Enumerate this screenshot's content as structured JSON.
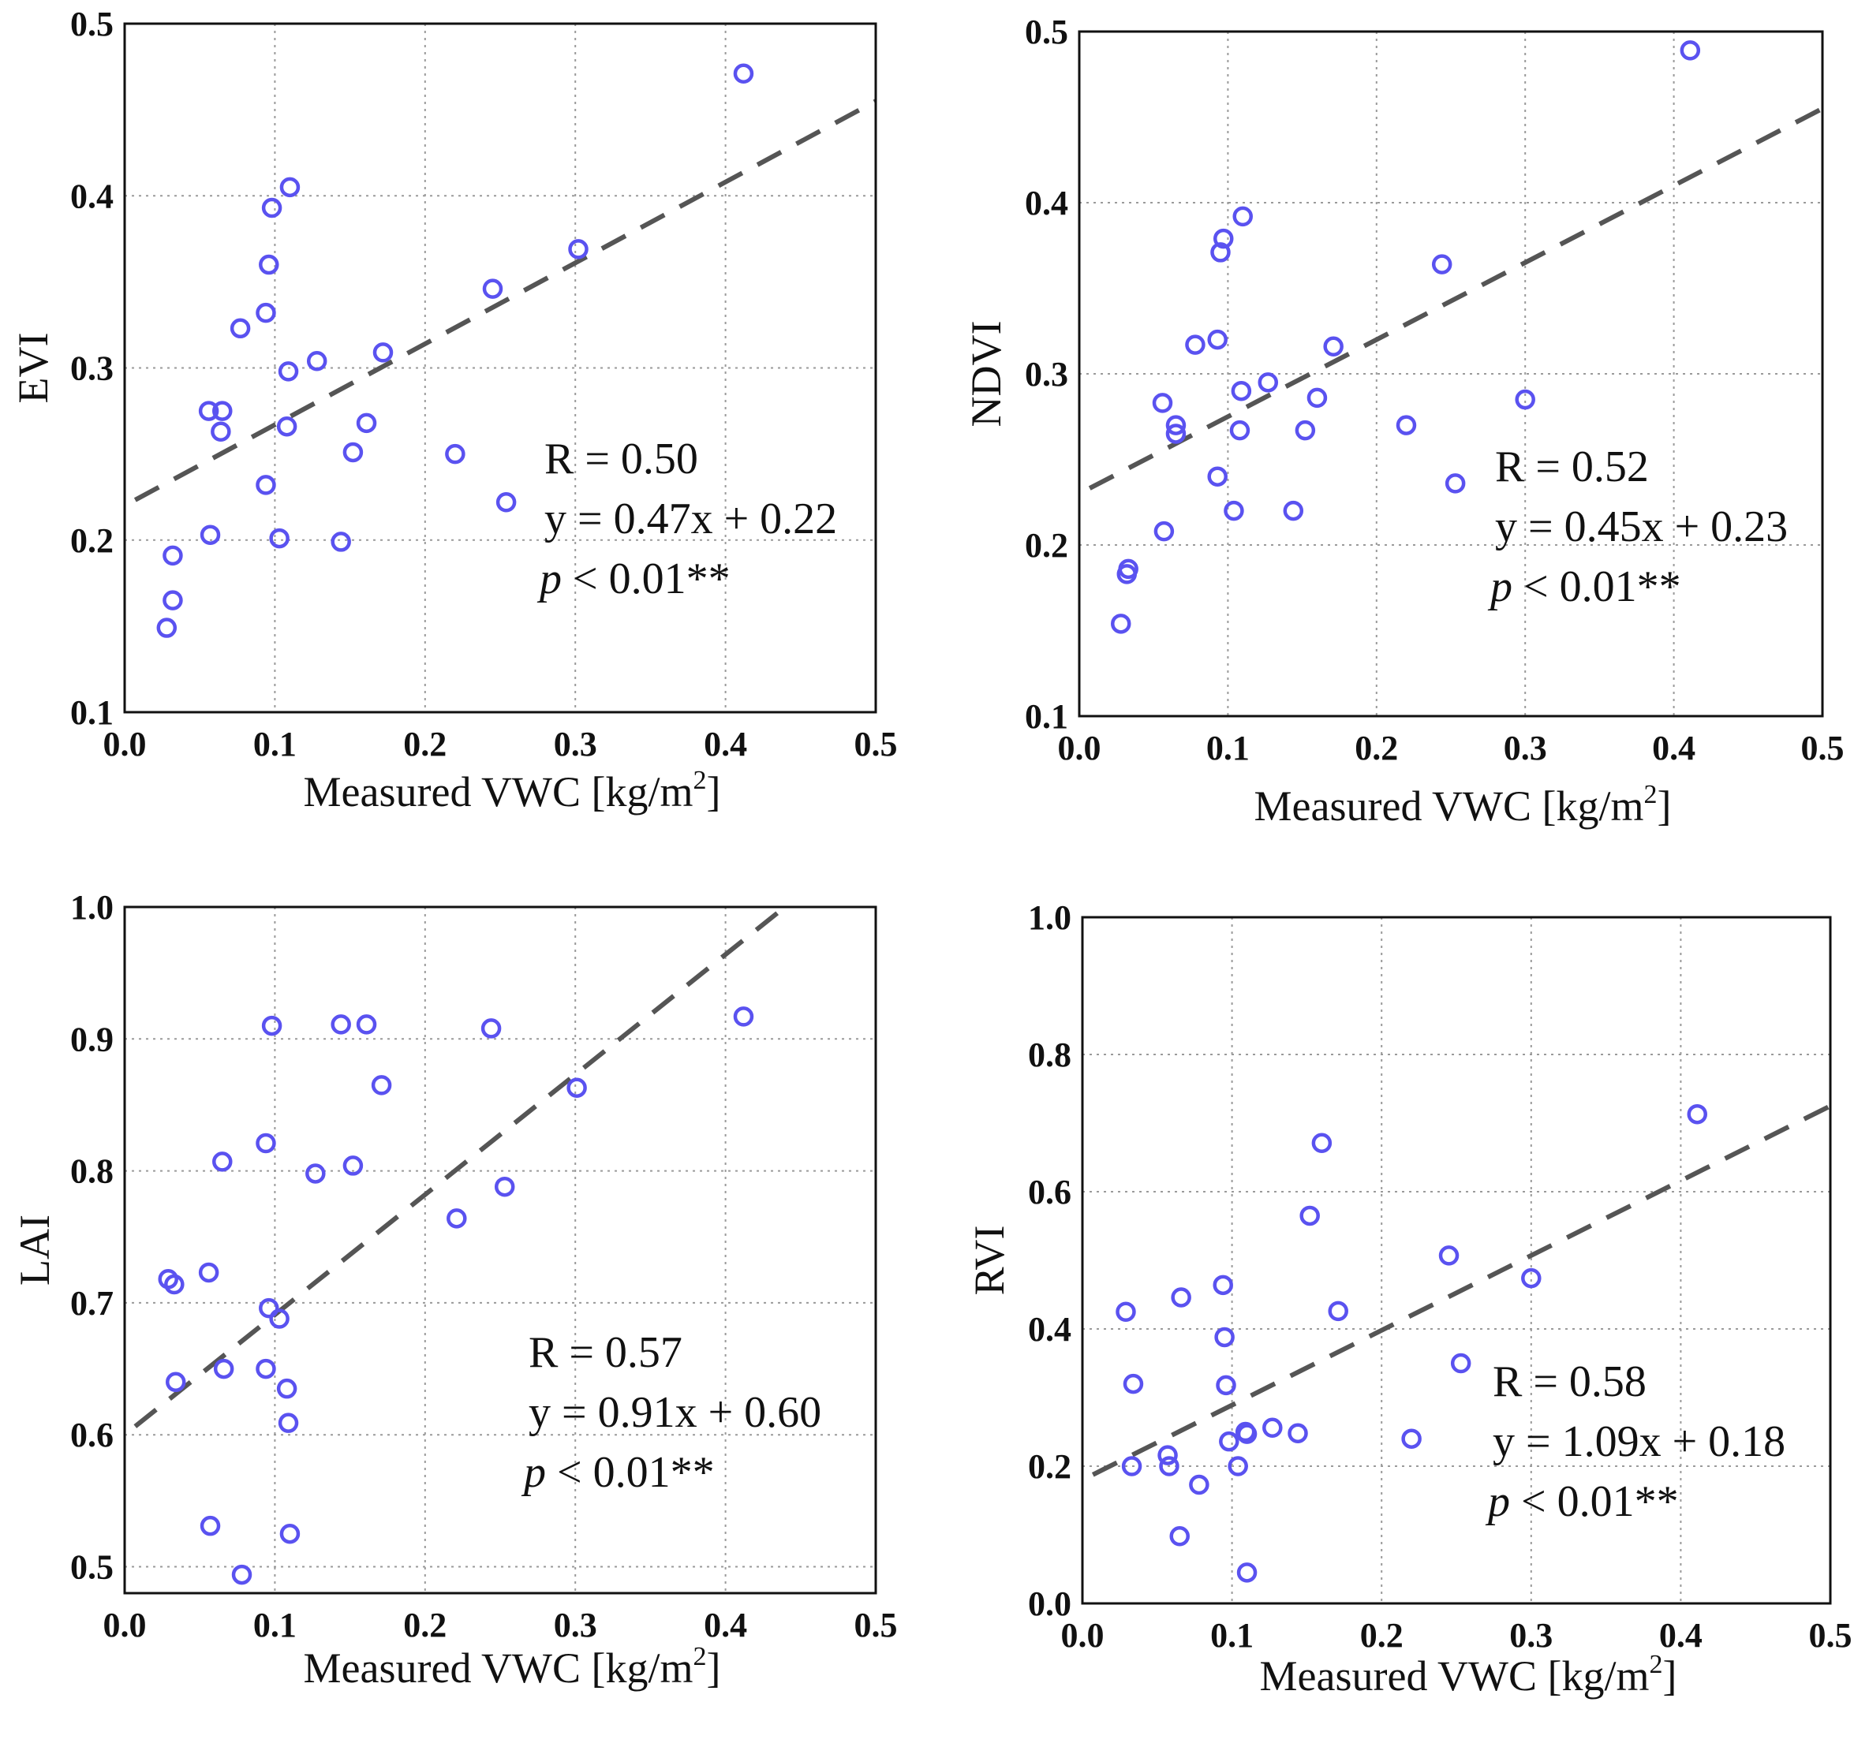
{
  "colors": {
    "points": "#5a52f0",
    "fit": "#555555",
    "frame": "#111111",
    "grid": "#9a9a9a"
  },
  "chart_data": [
    {
      "id": "evi",
      "type": "scatter",
      "title": "",
      "xlabel": "Measured VWC [kg/m",
      "xlabel_sup": "2",
      "xlabel_close": "]",
      "ylabel": "EVI",
      "xlim": [
        0,
        0.5
      ],
      "ylim": [
        0.1,
        0.5
      ],
      "xticks": [
        0,
        0.1,
        0.2,
        0.3,
        0.4,
        0.5
      ],
      "xtick_labels": [
        "0.0",
        "0.1",
        "0.2",
        "0.3",
        "0.4",
        "0.5"
      ],
      "yticks": [
        0.1,
        0.2,
        0.3,
        0.4,
        0.5
      ],
      "ytick_labels": [
        "0.1",
        "0.2",
        "0.3",
        "0.4",
        "0.5"
      ],
      "grid": true,
      "points": [
        [
          0.028,
          0.149
        ],
        [
          0.032,
          0.165
        ],
        [
          0.032,
          0.191
        ],
        [
          0.057,
          0.203
        ],
        [
          0.056,
          0.275
        ],
        [
          0.065,
          0.275
        ],
        [
          0.064,
          0.263
        ],
        [
          0.077,
          0.323
        ],
        [
          0.094,
          0.232
        ],
        [
          0.094,
          0.332
        ],
        [
          0.096,
          0.36
        ],
        [
          0.098,
          0.393
        ],
        [
          0.103,
          0.201
        ],
        [
          0.108,
          0.266
        ],
        [
          0.109,
          0.298
        ],
        [
          0.11,
          0.405
        ],
        [
          0.128,
          0.304
        ],
        [
          0.144,
          0.199
        ],
        [
          0.152,
          0.251
        ],
        [
          0.161,
          0.268
        ],
        [
          0.172,
          0.309
        ],
        [
          0.22,
          0.25
        ],
        [
          0.245,
          0.346
        ],
        [
          0.254,
          0.222
        ],
        [
          0.302,
          0.369
        ],
        [
          0.412,
          0.471
        ]
      ],
      "fit": {
        "slope": 0.47,
        "intercept": 0.22,
        "x_range": [
          0.007,
          0.5
        ]
      },
      "stats": {
        "r": "R = 0.50",
        "equation": "y = 0.47x + 0.22",
        "p_symbol": "p",
        "p_rest": " < 0.01**"
      }
    },
    {
      "id": "ndvi",
      "type": "scatter",
      "title": "",
      "xlabel": "Measured VWC [kg/m",
      "xlabel_sup": "2",
      "xlabel_close": "]",
      "ylabel": "NDVI",
      "xlim": [
        0,
        0.5
      ],
      "ylim": [
        0.1,
        0.5
      ],
      "xticks": [
        0,
        0.1,
        0.2,
        0.3,
        0.4,
        0.5
      ],
      "xtick_labels": [
        "0.0",
        "0.1",
        "0.2",
        "0.3",
        "0.4",
        "0.5"
      ],
      "yticks": [
        0.1,
        0.2,
        0.3,
        0.4,
        0.5
      ],
      "ytick_labels": [
        "0.1",
        "0.2",
        "0.3",
        "0.4",
        "0.5"
      ],
      "grid": true,
      "points": [
        [
          0.028,
          0.154
        ],
        [
          0.032,
          0.183
        ],
        [
          0.033,
          0.186
        ],
        [
          0.057,
          0.208
        ],
        [
          0.056,
          0.283
        ],
        [
          0.065,
          0.265
        ],
        [
          0.065,
          0.27
        ],
        [
          0.078,
          0.317
        ],
        [
          0.093,
          0.24
        ],
        [
          0.093,
          0.32
        ],
        [
          0.095,
          0.371
        ],
        [
          0.097,
          0.379
        ],
        [
          0.104,
          0.22
        ],
        [
          0.108,
          0.267
        ],
        [
          0.109,
          0.29
        ],
        [
          0.11,
          0.392
        ],
        [
          0.127,
          0.295
        ],
        [
          0.144,
          0.22
        ],
        [
          0.152,
          0.267
        ],
        [
          0.16,
          0.286
        ],
        [
          0.171,
          0.316
        ],
        [
          0.22,
          0.27
        ],
        [
          0.244,
          0.364
        ],
        [
          0.253,
          0.236
        ],
        [
          0.3,
          0.285
        ],
        [
          0.411,
          0.489
        ]
      ],
      "fit": {
        "slope": 0.45,
        "intercept": 0.23,
        "x_range": [
          0.007,
          0.5
        ]
      },
      "stats": {
        "r": "R = 0.52",
        "equation": "y = 0.45x + 0.23",
        "p_symbol": "p",
        "p_rest": " < 0.01**"
      }
    },
    {
      "id": "lai",
      "type": "scatter",
      "title": "",
      "xlabel": "Measured VWC [kg/m",
      "xlabel_sup": "2",
      "xlabel_close": "]",
      "ylabel": "LAI",
      "xlim": [
        0,
        0.5
      ],
      "ylim": [
        0.48,
        1.0
      ],
      "xticks": [
        0,
        0.1,
        0.2,
        0.3,
        0.4,
        0.5
      ],
      "xtick_labels": [
        "0.0",
        "0.1",
        "0.2",
        "0.3",
        "0.4",
        "0.5"
      ],
      "yticks": [
        0.5,
        0.6,
        0.7,
        0.8,
        0.9,
        1.0
      ],
      "ytick_labels": [
        "0.5",
        "0.6",
        "0.7",
        "0.8",
        "0.9",
        "1.0"
      ],
      "grid": true,
      "points": [
        [
          0.029,
          0.718
        ],
        [
          0.033,
          0.714
        ],
        [
          0.034,
          0.64
        ],
        [
          0.056,
          0.723
        ],
        [
          0.057,
          0.531
        ],
        [
          0.065,
          0.807
        ],
        [
          0.066,
          0.65
        ],
        [
          0.078,
          0.494
        ],
        [
          0.094,
          0.821
        ],
        [
          0.094,
          0.65
        ],
        [
          0.096,
          0.696
        ],
        [
          0.098,
          0.91
        ],
        [
          0.103,
          0.688
        ],
        [
          0.108,
          0.635
        ],
        [
          0.109,
          0.609
        ],
        [
          0.11,
          0.525
        ],
        [
          0.127,
          0.798
        ],
        [
          0.144,
          0.911
        ],
        [
          0.152,
          0.804
        ],
        [
          0.161,
          0.911
        ],
        [
          0.171,
          0.865
        ],
        [
          0.221,
          0.764
        ],
        [
          0.244,
          0.908
        ],
        [
          0.253,
          0.788
        ],
        [
          0.301,
          0.863
        ],
        [
          0.412,
          0.917
        ]
      ],
      "fit": {
        "slope": 0.91,
        "intercept": 0.6,
        "x_range": [
          0.007,
          0.5
        ]
      },
      "stats": {
        "r": "R = 0.57",
        "equation": "y = 0.91x + 0.60",
        "p_symbol": "p",
        "p_rest": " < 0.01**"
      }
    },
    {
      "id": "rvi",
      "type": "scatter",
      "title": "",
      "xlabel": "Measured VWC [kg/m",
      "xlabel_sup": "2",
      "xlabel_close": "]",
      "ylabel": "RVI",
      "xlim": [
        0,
        0.5
      ],
      "ylim": [
        0,
        1.0
      ],
      "xticks": [
        0,
        0.1,
        0.2,
        0.3,
        0.4,
        0.5
      ],
      "xtick_labels": [
        "0.0",
        "0.1",
        "0.2",
        "0.3",
        "0.4",
        "0.5"
      ],
      "yticks": [
        0,
        0.2,
        0.4,
        0.6,
        0.8,
        1.0
      ],
      "ytick_labels": [
        "0.0",
        "0.2",
        "0.4",
        "0.6",
        "0.8",
        "1.0"
      ],
      "grid": true,
      "points": [
        [
          0.029,
          0.425
        ],
        [
          0.033,
          0.2
        ],
        [
          0.034,
          0.32
        ],
        [
          0.057,
          0.216
        ],
        [
          0.058,
          0.2
        ],
        [
          0.065,
          0.098
        ],
        [
          0.066,
          0.446
        ],
        [
          0.078,
          0.173
        ],
        [
          0.094,
          0.464
        ],
        [
          0.095,
          0.388
        ],
        [
          0.096,
          0.318
        ],
        [
          0.098,
          0.236
        ],
        [
          0.104,
          0.2
        ],
        [
          0.109,
          0.25
        ],
        [
          0.11,
          0.247
        ],
        [
          0.11,
          0.045
        ],
        [
          0.127,
          0.256
        ],
        [
          0.144,
          0.248
        ],
        [
          0.152,
          0.565
        ],
        [
          0.16,
          0.671
        ],
        [
          0.171,
          0.426
        ],
        [
          0.22,
          0.24
        ],
        [
          0.245,
          0.507
        ],
        [
          0.253,
          0.35
        ],
        [
          0.3,
          0.474
        ],
        [
          0.411,
          0.713
        ]
      ],
      "fit": {
        "slope": 1.09,
        "intercept": 0.18,
        "x_range": [
          0.007,
          0.5
        ]
      },
      "stats": {
        "r": "R = 0.58",
        "equation": "y = 1.09x + 0.18",
        "p_symbol": "p",
        "p_rest": " < 0.01**"
      }
    }
  ]
}
